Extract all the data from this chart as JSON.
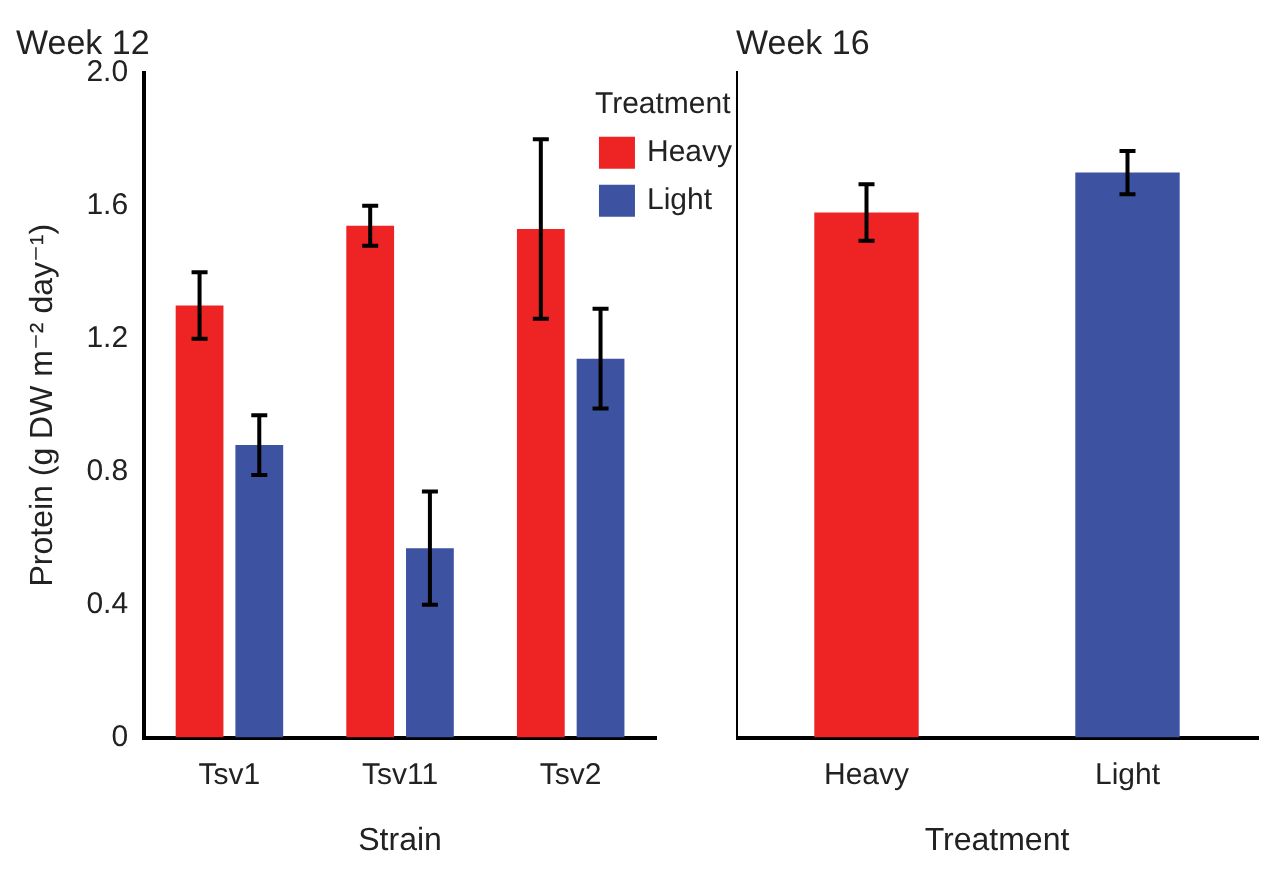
{
  "chart_data": [
    {
      "type": "bar",
      "title": "Week 12",
      "xlabel": "Strain",
      "ylabel": "Protein (g DW m⁻² day⁻¹)",
      "legend_title": "Treatment",
      "legend": "top right",
      "categories": [
        "Tsv1",
        "Tsv11",
        "Tsv2"
      ],
      "series": [
        {
          "name": "Heavy",
          "color": "#ee2424",
          "values": [
            1.3,
            1.54,
            1.53
          ],
          "errors": [
            0.1,
            0.06,
            0.27
          ]
        },
        {
          "name": "Light",
          "color": "#3d52a1",
          "values": [
            0.88,
            0.57,
            1.14
          ],
          "errors": [
            0.09,
            0.17,
            0.15
          ]
        }
      ],
      "ylim": [
        0,
        2
      ],
      "yticks": [
        0,
        0.4,
        0.8,
        1.2,
        1.6,
        {
          "value": 2,
          "label": "2.0"
        }
      ]
    },
    {
      "type": "bar",
      "title": "Week 16",
      "xlabel": "Treatment",
      "categories": [
        "Heavy",
        "Light"
      ],
      "series": [
        {
          "colors": [
            "#ee2424",
            "#3d52a1"
          ],
          "values": [
            1.58,
            1.7
          ],
          "errors": [
            0.085,
            0.065
          ]
        }
      ],
      "ylim": [
        0,
        2
      ],
      "tick_labels": "x"
    }
  ]
}
